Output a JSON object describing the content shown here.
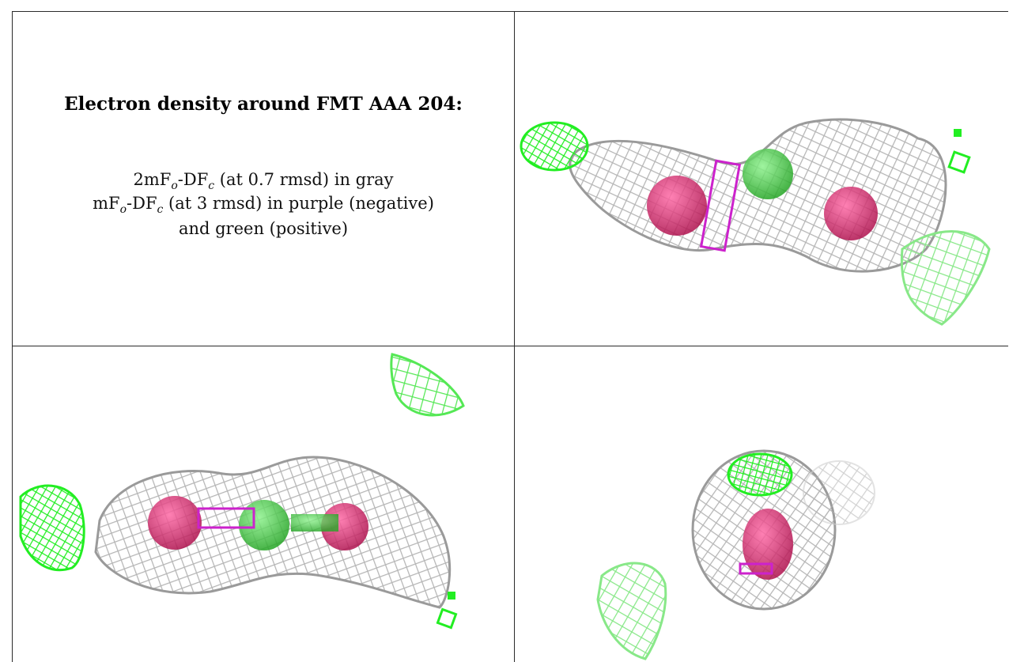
{
  "caption": {
    "title": "Electron density around FMT AAA 204:",
    "map1_prefix": "2mF",
    "map1_sub_o": "o",
    "map1_mid": "-DF",
    "map1_sub_c": "c",
    "map1_suffix": " (at 0.7 rmsd) in gray",
    "map2_prefix": "mF",
    "map2_sub_o": "o",
    "map2_mid": "-DF",
    "map2_sub_c": "c",
    "map2_suffix": " (at 3 rmsd) in purple (negative)",
    "map2_cont": "and green (positive)"
  },
  "colors": {
    "mesh_gray": "#b8b8b8",
    "mesh_gray_dark": "#8a8a8a",
    "positive_green": "#22ee22",
    "positive_green_light": "#88e888",
    "negative_purple": "#cc22cc",
    "atom_red": "#d81b6a",
    "atom_green": "#39d239"
  },
  "panels": [
    "view-top-right",
    "view-bottom-left",
    "view-bottom-right"
  ]
}
